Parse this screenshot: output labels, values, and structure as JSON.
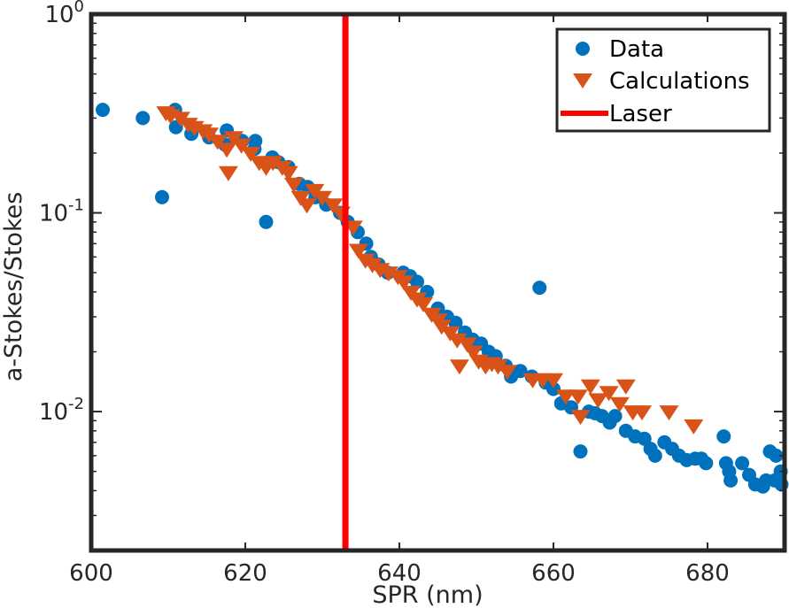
{
  "chart_data": {
    "type": "scatter",
    "xlabel": "SPR (nm)",
    "ylabel": "a-Stokes/Stokes",
    "xlim": [
      600,
      690
    ],
    "ylim": [
      0.002,
      1
    ],
    "yscale": "log",
    "grid": false,
    "legend_position": "top-right",
    "x_ticks": [
      600,
      620,
      640,
      660,
      680
    ],
    "x_tick_labels": [
      "600",
      "620",
      "640",
      "660",
      "680"
    ],
    "y_ticks": [
      0.01,
      0.1,
      1
    ],
    "y_tick_labels": [
      {
        "base": "10",
        "exp": "-2"
      },
      {
        "base": "10",
        "exp": "-1"
      },
      {
        "base": "10",
        "exp": "0"
      }
    ],
    "series": [
      {
        "name": "Data",
        "marker": "circle",
        "color": "#0072BD",
        "points": [
          [
            601.5,
            0.33
          ],
          [
            606.7,
            0.3
          ],
          [
            609.2,
            0.12
          ],
          [
            611.0,
            0.27
          ],
          [
            610.9,
            0.33
          ],
          [
            613.0,
            0.25
          ],
          [
            615.3,
            0.24
          ],
          [
            617.6,
            0.26
          ],
          [
            617.4,
            0.22
          ],
          [
            619.6,
            0.23
          ],
          [
            621.3,
            0.23
          ],
          [
            621.2,
            0.21
          ],
          [
            622.7,
            0.09
          ],
          [
            623.5,
            0.19
          ],
          [
            624.3,
            0.18
          ],
          [
            625.6,
            0.17
          ],
          [
            627.0,
            0.14
          ],
          [
            628.1,
            0.135
          ],
          [
            629.1,
            0.12
          ],
          [
            630.5,
            0.11
          ],
          [
            632.3,
            0.1
          ],
          [
            633.3,
            0.09
          ],
          [
            634.6,
            0.08
          ],
          [
            635.7,
            0.07
          ],
          [
            636.3,
            0.06
          ],
          [
            637.3,
            0.055
          ],
          [
            638.5,
            0.05
          ],
          [
            640.5,
            0.05
          ],
          [
            641.4,
            0.048
          ],
          [
            642.3,
            0.045
          ],
          [
            643.6,
            0.04
          ],
          [
            645.0,
            0.033
          ],
          [
            646.2,
            0.03
          ],
          [
            647.3,
            0.028
          ],
          [
            648.5,
            0.025
          ],
          [
            649.5,
            0.023
          ],
          [
            650.6,
            0.022
          ],
          [
            651.6,
            0.02
          ],
          [
            652.5,
            0.019
          ],
          [
            653.8,
            0.017
          ],
          [
            654.5,
            0.015
          ],
          [
            655.7,
            0.016
          ],
          [
            657.2,
            0.015
          ],
          [
            658.2,
            0.042
          ],
          [
            659.0,
            0.014
          ],
          [
            660.0,
            0.013
          ],
          [
            661.0,
            0.011
          ],
          [
            662.3,
            0.0105
          ],
          [
            663.5,
            0.0063
          ],
          [
            664.6,
            0.01
          ],
          [
            665.4,
            0.0098
          ],
          [
            666.3,
            0.0095
          ],
          [
            667.3,
            0.0088
          ],
          [
            668.0,
            0.0095
          ],
          [
            669.4,
            0.008
          ],
          [
            670.6,
            0.0075
          ],
          [
            671.8,
            0.0073
          ],
          [
            672.6,
            0.0065
          ],
          [
            673.2,
            0.006
          ],
          [
            674.4,
            0.007
          ],
          [
            675.4,
            0.0065
          ],
          [
            676.3,
            0.006
          ],
          [
            677.3,
            0.0057
          ],
          [
            678.4,
            0.0058
          ],
          [
            679.2,
            0.0058
          ],
          [
            679.8,
            0.0055
          ],
          [
            682.1,
            0.0075
          ],
          [
            682.4,
            0.0055
          ],
          [
            682.8,
            0.005
          ],
          [
            683.0,
            0.0045
          ],
          [
            684.5,
            0.0055
          ],
          [
            685.4,
            0.0048
          ],
          [
            686.2,
            0.0043
          ],
          [
            687.2,
            0.0042
          ],
          [
            687.6,
            0.0045
          ],
          [
            688.1,
            0.0063
          ],
          [
            688.7,
            0.0045
          ],
          [
            688.9,
            0.006
          ],
          [
            689.5,
            0.005
          ],
          [
            689.6,
            0.0043
          ]
        ]
      },
      {
        "name": "Calculations",
        "marker": "triangle-down",
        "color": "#D95319",
        "points": [
          [
            609.7,
            0.32
          ],
          [
            610.3,
            0.31
          ],
          [
            611.6,
            0.3
          ],
          [
            612.6,
            0.28
          ],
          [
            613.4,
            0.27
          ],
          [
            614.5,
            0.26
          ],
          [
            615.3,
            0.25
          ],
          [
            616.4,
            0.23
          ],
          [
            617.6,
            0.21
          ],
          [
            617.8,
            0.16
          ],
          [
            618.5,
            0.24
          ],
          [
            619.5,
            0.22
          ],
          [
            620.7,
            0.2
          ],
          [
            621.8,
            0.18
          ],
          [
            622.7,
            0.17
          ],
          [
            623.6,
            0.18
          ],
          [
            624.8,
            0.17
          ],
          [
            625.6,
            0.16
          ],
          [
            626.3,
            0.14
          ],
          [
            627.2,
            0.12
          ],
          [
            628.0,
            0.11
          ],
          [
            629.0,
            0.13
          ],
          [
            630.0,
            0.12
          ],
          [
            631.4,
            0.11
          ],
          [
            632.4,
            0.1
          ],
          [
            634.0,
            0.085
          ],
          [
            634.7,
            0.065
          ],
          [
            635.6,
            0.058
          ],
          [
            636.5,
            0.055
          ],
          [
            637.5,
            0.052
          ],
          [
            638.6,
            0.05
          ],
          [
            639.8,
            0.048
          ],
          [
            640.6,
            0.045
          ],
          [
            641.5,
            0.04
          ],
          [
            642.3,
            0.037
          ],
          [
            643.1,
            0.035
          ],
          [
            644.2,
            0.031
          ],
          [
            645.0,
            0.029
          ],
          [
            645.5,
            0.027
          ],
          [
            646.6,
            0.025
          ],
          [
            647.5,
            0.023
          ],
          [
            647.8,
            0.017
          ],
          [
            648.8,
            0.022
          ],
          [
            649.6,
            0.02
          ],
          [
            650.3,
            0.018
          ],
          [
            651.2,
            0.017
          ],
          [
            652.0,
            0.0175
          ],
          [
            652.8,
            0.017
          ],
          [
            654.0,
            0.016
          ],
          [
            657.3,
            0.0145
          ],
          [
            658.6,
            0.0145
          ],
          [
            660.0,
            0.0145
          ],
          [
            661.6,
            0.012
          ],
          [
            663.2,
            0.012
          ],
          [
            663.5,
            0.0095
          ],
          [
            664.8,
            0.0135
          ],
          [
            665.8,
            0.0115
          ],
          [
            667.2,
            0.0125
          ],
          [
            668.6,
            0.011
          ],
          [
            669.4,
            0.0135
          ],
          [
            670.3,
            0.01
          ],
          [
            671.5,
            0.01
          ],
          [
            675.0,
            0.01
          ],
          [
            678.2,
            0.0085
          ]
        ]
      },
      {
        "name": "Laser",
        "marker": "vertical-line",
        "color": "#FF0000",
        "x": 633
      }
    ]
  }
}
